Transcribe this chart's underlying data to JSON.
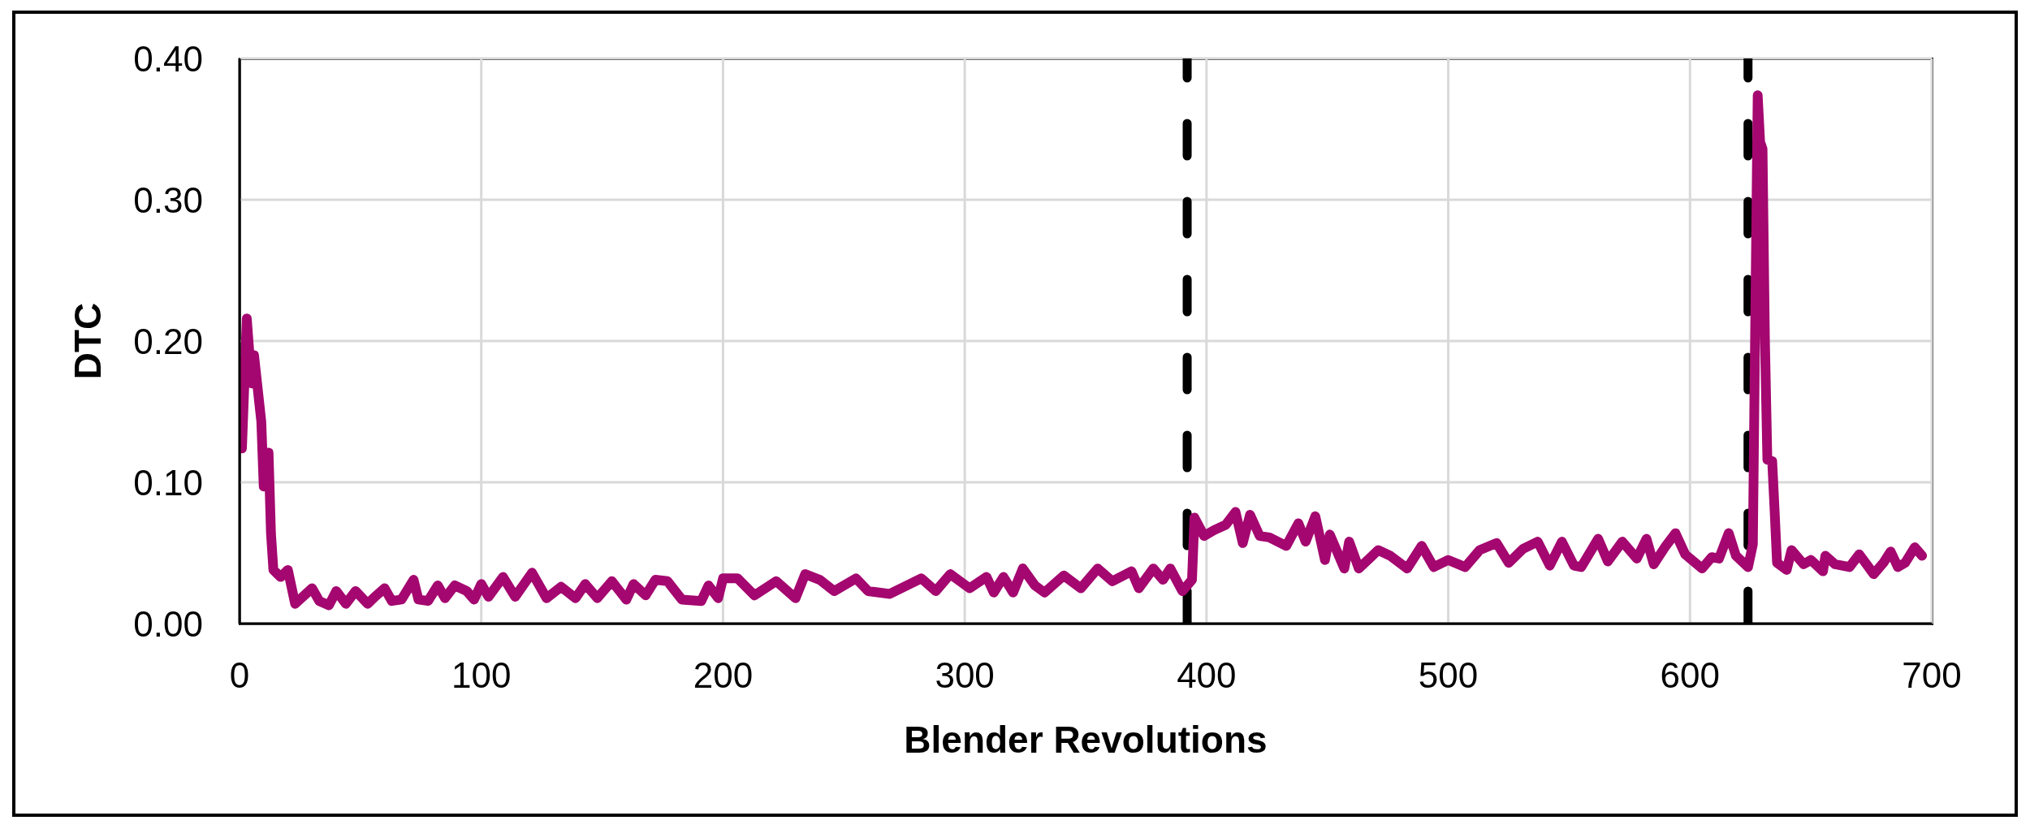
{
  "chart_data": {
    "type": "line",
    "xlabel": "Blender Revolutions",
    "ylabel": "DTC",
    "x": [
      1,
      3,
      5,
      6,
      9,
      10,
      12,
      13,
      14,
      17,
      20,
      23,
      30,
      33,
      37,
      40,
      44,
      48,
      53,
      56,
      60,
      63,
      67,
      72,
      74,
      78,
      82,
      85,
      89,
      94,
      97,
      100,
      103,
      109,
      114,
      121,
      127,
      133,
      139,
      143,
      148,
      154,
      160,
      163,
      168,
      172,
      177,
      183,
      191,
      194,
      198,
      200,
      206,
      213,
      222,
      230,
      234,
      240,
      246,
      255,
      260,
      269,
      282,
      288,
      294,
      302,
      309,
      312,
      316,
      320,
      324,
      329,
      333,
      341,
      348,
      355,
      361,
      369,
      372,
      378,
      382,
      385,
      390,
      394,
      395,
      399,
      403,
      408,
      412,
      415,
      418,
      422,
      426,
      433,
      438,
      441,
      445,
      449,
      451,
      457,
      459,
      463,
      468,
      471,
      476,
      483,
      489,
      494,
      500,
      507,
      513,
      520,
      525,
      531,
      537,
      542,
      547,
      552,
      555,
      562,
      566,
      572,
      578,
      582,
      585,
      590,
      594,
      598,
      605,
      609,
      612,
      616,
      619,
      624,
      626,
      628,
      629,
      630,
      631,
      632,
      634,
      635,
      636,
      640,
      642,
      647,
      650,
      655,
      656,
      660,
      666,
      670,
      673,
      676,
      680,
      683,
      686,
      689,
      693,
      696
    ],
    "values": [
      0.124,
      0.216,
      0.17,
      0.19,
      0.143,
      0.097,
      0.121,
      0.064,
      0.038,
      0.033,
      0.038,
      0.014,
      0.025,
      0.016,
      0.013,
      0.023,
      0.014,
      0.023,
      0.014,
      0.019,
      0.025,
      0.016,
      0.017,
      0.031,
      0.017,
      0.016,
      0.027,
      0.018,
      0.027,
      0.023,
      0.017,
      0.028,
      0.019,
      0.033,
      0.019,
      0.036,
      0.018,
      0.026,
      0.018,
      0.028,
      0.018,
      0.03,
      0.017,
      0.028,
      0.02,
      0.031,
      0.03,
      0.017,
      0.016,
      0.027,
      0.018,
      0.032,
      0.032,
      0.02,
      0.03,
      0.018,
      0.035,
      0.031,
      0.023,
      0.032,
      0.023,
      0.021,
      0.032,
      0.023,
      0.035,
      0.025,
      0.033,
      0.022,
      0.033,
      0.022,
      0.039,
      0.027,
      0.022,
      0.034,
      0.025,
      0.039,
      0.03,
      0.037,
      0.025,
      0.039,
      0.031,
      0.039,
      0.023,
      0.031,
      0.075,
      0.062,
      0.066,
      0.07,
      0.079,
      0.057,
      0.077,
      0.062,
      0.061,
      0.055,
      0.071,
      0.058,
      0.076,
      0.045,
      0.063,
      0.039,
      0.058,
      0.039,
      0.047,
      0.052,
      0.048,
      0.039,
      0.055,
      0.04,
      0.045,
      0.04,
      0.052,
      0.057,
      0.043,
      0.053,
      0.058,
      0.041,
      0.058,
      0.041,
      0.04,
      0.06,
      0.044,
      0.058,
      0.046,
      0.06,
      0.042,
      0.055,
      0.064,
      0.049,
      0.039,
      0.047,
      0.046,
      0.064,
      0.048,
      0.04,
      0.056,
      0.374,
      0.341,
      0.336,
      0.2,
      0.116,
      0.115,
      0.08,
      0.043,
      0.038,
      0.052,
      0.042,
      0.045,
      0.037,
      0.048,
      0.042,
      0.04,
      0.049,
      0.042,
      0.035,
      0.043,
      0.051,
      0.04,
      0.043,
      0.054,
      0.048
    ],
    "color": "#a4076f",
    "xlim": [
      0,
      700
    ],
    "xticks": [
      0,
      100,
      200,
      300,
      400,
      500,
      600,
      700
    ],
    "ylim": [
      0,
      0.4
    ],
    "yticks": [
      {
        "value": 0,
        "label": "0.00"
      },
      {
        "value": 0.1,
        "label": "0.10"
      },
      {
        "value": 0.2,
        "label": "0.20"
      },
      {
        "value": 0.3,
        "label": "0.30"
      },
      {
        "value": 0.4,
        "label": "0.40"
      }
    ],
    "grid": true,
    "ref_lines": [
      {
        "axis": "x",
        "value": 392,
        "color": "#000000",
        "line_style": "dashed"
      },
      {
        "axis": "x",
        "value": 624,
        "color": "#000000",
        "line_style": "dashed"
      }
    ]
  }
}
